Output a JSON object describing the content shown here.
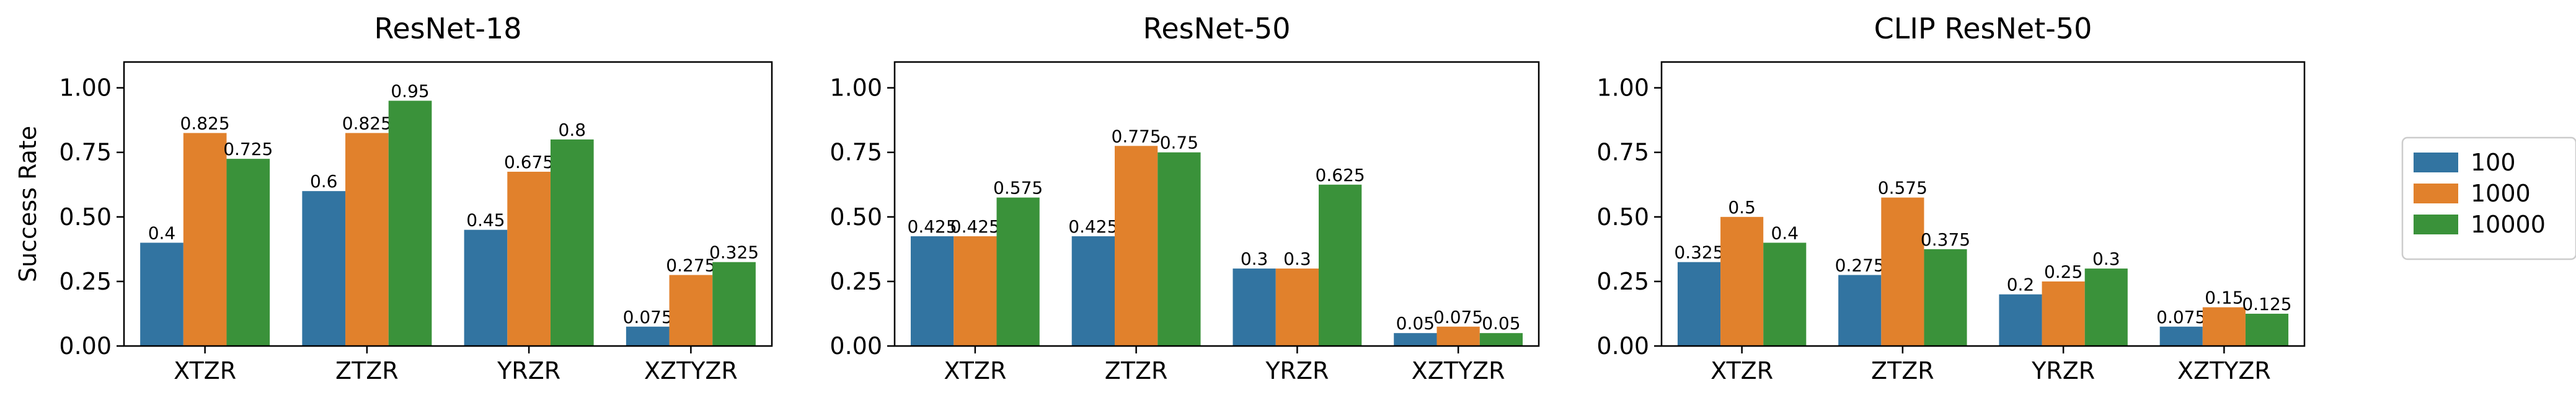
{
  "chart_data": [
    {
      "type": "bar",
      "title": "ResNet-18",
      "ylabel": "Success Rate",
      "xlabel": "",
      "categories": [
        "XTZR",
        "ZTZR",
        "YRZR",
        "XZTYZR"
      ],
      "ylim": [
        0,
        1.1
      ],
      "yticks": [
        "0.00",
        "0.25",
        "0.50",
        "0.75",
        "1.00"
      ],
      "series": [
        {
          "name": "100",
          "color": "#3274a1",
          "values": [
            0.4,
            0.6,
            0.45,
            0.075
          ],
          "labels": [
            "0.4",
            "0.6",
            "0.45",
            "0.075"
          ]
        },
        {
          "name": "1000",
          "color": "#e1812c",
          "values": [
            0.825,
            0.825,
            0.675,
            0.275
          ],
          "labels": [
            "0.825",
            "0.825",
            "0.675",
            "0.275"
          ]
        },
        {
          "name": "10000",
          "color": "#3a923a",
          "values": [
            0.725,
            0.95,
            0.8,
            0.325
          ],
          "labels": [
            "0.725",
            "0.95",
            "0.8",
            "0.325"
          ]
        }
      ]
    },
    {
      "type": "bar",
      "title": "ResNet-50",
      "ylabel": "",
      "xlabel": "",
      "categories": [
        "XTZR",
        "ZTZR",
        "YRZR",
        "XZTYZR"
      ],
      "ylim": [
        0,
        1.1
      ],
      "yticks": [
        "0.00",
        "0.25",
        "0.50",
        "0.75",
        "1.00"
      ],
      "series": [
        {
          "name": "100",
          "color": "#3274a1",
          "values": [
            0.425,
            0.425,
            0.3,
            0.05
          ],
          "labels": [
            "0.425",
            "0.425",
            "0.3",
            "0.05"
          ]
        },
        {
          "name": "1000",
          "color": "#e1812c",
          "values": [
            0.425,
            0.775,
            0.3,
            0.075
          ],
          "labels": [
            "0.425",
            "0.775",
            "0.3",
            "0.075"
          ]
        },
        {
          "name": "10000",
          "color": "#3a923a",
          "values": [
            0.575,
            0.75,
            0.625,
            0.05
          ],
          "labels": [
            "0.575",
            "0.75",
            "0.625",
            "0.05"
          ]
        }
      ]
    },
    {
      "type": "bar",
      "title": "CLIP ResNet-50",
      "ylabel": "",
      "xlabel": "",
      "categories": [
        "XTZR",
        "ZTZR",
        "YRZR",
        "XZTYZR"
      ],
      "ylim": [
        0,
        1.1
      ],
      "yticks": [
        "0.00",
        "0.25",
        "0.50",
        "0.75",
        "1.00"
      ],
      "series": [
        {
          "name": "100",
          "color": "#3274a1",
          "values": [
            0.325,
            0.275,
            0.2,
            0.075
          ],
          "labels": [
            "0.325",
            "0.275",
            "0.2",
            "0.075"
          ]
        },
        {
          "name": "1000",
          "color": "#e1812c",
          "values": [
            0.5,
            0.575,
            0.25,
            0.15
          ],
          "labels": [
            "0.5",
            "0.575",
            "0.25",
            "0.15"
          ]
        },
        {
          "name": "10000",
          "color": "#3a923a",
          "values": [
            0.4,
            0.375,
            0.3,
            0.125
          ],
          "labels": [
            "0.4",
            "0.375",
            "0.3",
            "0.125"
          ]
        }
      ]
    }
  ],
  "legend": {
    "placement": "right",
    "entries": [
      {
        "label": "100",
        "color": "#3274a1"
      },
      {
        "label": "1000",
        "color": "#e1812c"
      },
      {
        "label": "10000",
        "color": "#3a923a"
      }
    ]
  }
}
